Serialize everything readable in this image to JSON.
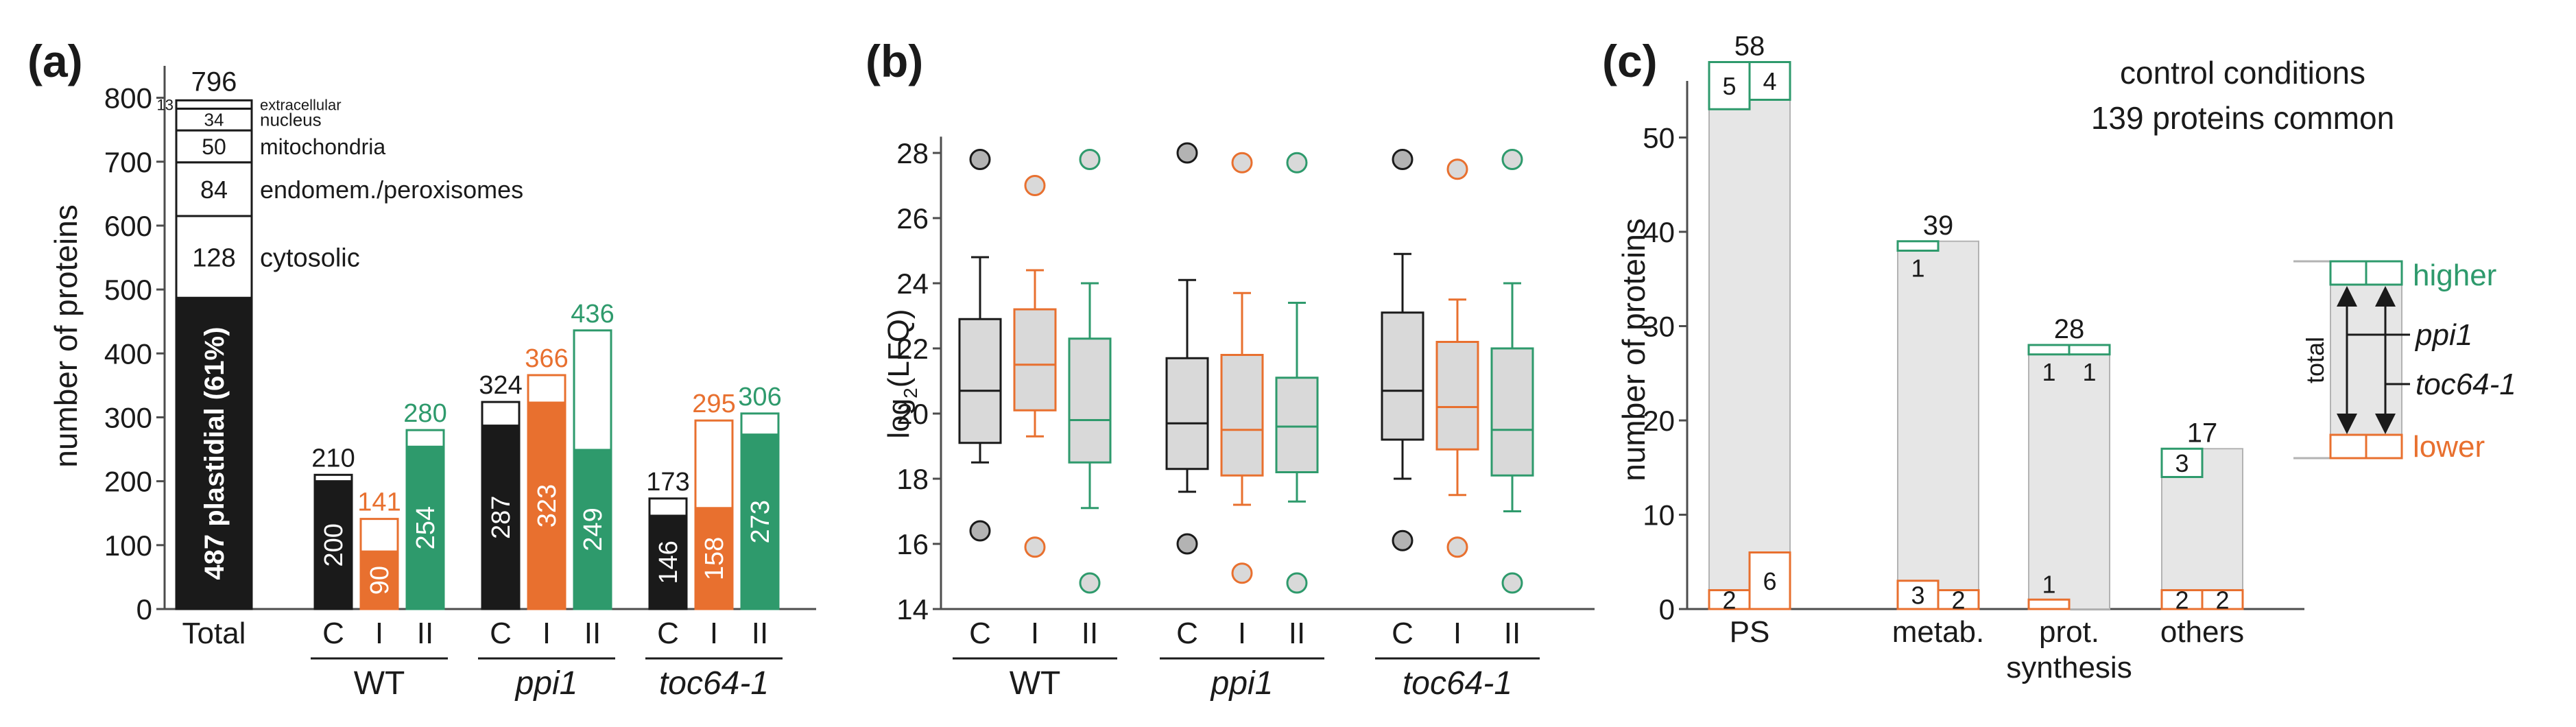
{
  "colors": {
    "black": "#1a1a1a",
    "orange": "#e8702f",
    "green": "#2e9a6c",
    "gray_fill": "#d9d9d9",
    "light_gray": "#e6e6e6",
    "axis": "#4d4d4d"
  },
  "chart_data": [
    {
      "panel": "(a)",
      "type": "bar",
      "ylabel": "number of proteins",
      "ylim": [
        0,
        850
      ],
      "yticks": [
        0,
        100,
        200,
        300,
        400,
        500,
        600,
        700,
        800
      ],
      "total_bar": {
        "label": "Total",
        "total": "796",
        "stack": [
          {
            "value": 487,
            "text": "487 plastidial (61%)"
          },
          {
            "value": 128,
            "text": "128",
            "name": "cytosolic"
          },
          {
            "value": 84,
            "text": "84",
            "name": "endomem./peroxisomes"
          },
          {
            "value": 50,
            "text": "50",
            "name": "mitochondria"
          },
          {
            "value": 34,
            "text": "34",
            "name": "nucleus"
          },
          {
            "value": 13,
            "text": "13",
            "name": "extracellular"
          }
        ]
      },
      "groups": [
        {
          "name": "WT",
          "italic": false,
          "bars": [
            {
              "label": "C",
              "total": 210,
              "plastid": 200,
              "color": "black"
            },
            {
              "label": "I",
              "total": 141,
              "plastid": 90,
              "color": "orange"
            },
            {
              "label": "II",
              "total": 280,
              "plastid": 254,
              "color": "green"
            }
          ]
        },
        {
          "name": "ppi1",
          "italic": true,
          "bars": [
            {
              "label": "C",
              "total": 324,
              "plastid": 287,
              "color": "black"
            },
            {
              "label": "I",
              "total": 366,
              "plastid": 323,
              "color": "orange"
            },
            {
              "label": "II",
              "total": 436,
              "plastid": 249,
              "color": "green"
            }
          ]
        },
        {
          "name": "toc64-1",
          "italic": true,
          "bars": [
            {
              "label": "C",
              "total": 173,
              "plastid": 146,
              "color": "black"
            },
            {
              "label": "I",
              "total": 295,
              "plastid": 158,
              "color": "orange"
            },
            {
              "label": "II",
              "total": 306,
              "plastid": 273,
              "color": "green"
            }
          ]
        }
      ]
    },
    {
      "panel": "(b)",
      "type": "box",
      "ylabel_main": "log",
      "ylabel_sub": "2",
      "ylabel_rest": "(LFQ)",
      "ylim": [
        14,
        28.5
      ],
      "yticks": [
        14,
        16,
        18,
        20,
        22,
        24,
        26,
        28
      ],
      "groups": [
        {
          "name": "WT",
          "italic": false,
          "boxes": [
            {
              "label": "C",
              "color": "black",
              "whisker_low": 18.5,
              "q1": 19.1,
              "median": 20.7,
              "q3": 22.9,
              "whisker_high": 24.8,
              "outlier_low": 16.4,
              "outlier_high": 27.8
            },
            {
              "label": "I",
              "color": "orange",
              "whisker_low": 19.3,
              "q1": 20.1,
              "median": 21.5,
              "q3": 23.2,
              "whisker_high": 24.4,
              "outlier_low": 15.9,
              "outlier_high": 27.0
            },
            {
              "label": "II",
              "color": "green",
              "whisker_low": 17.1,
              "q1": 18.5,
              "median": 19.8,
              "q3": 22.3,
              "whisker_high": 24.0,
              "outlier_low": 14.8,
              "outlier_high": 27.8
            }
          ]
        },
        {
          "name": "ppi1",
          "italic": true,
          "boxes": [
            {
              "label": "C",
              "color": "black",
              "whisker_low": 17.6,
              "q1": 18.3,
              "median": 19.7,
              "q3": 21.7,
              "whisker_high": 24.1,
              "outlier_low": 16.0,
              "outlier_high": 28.0
            },
            {
              "label": "I",
              "color": "orange",
              "whisker_low": 17.2,
              "q1": 18.1,
              "median": 19.5,
              "q3": 21.8,
              "whisker_high": 23.7,
              "outlier_low": 15.1,
              "outlier_high": 27.7
            },
            {
              "label": "II",
              "color": "green",
              "whisker_low": 17.3,
              "q1": 18.2,
              "median": 19.6,
              "q3": 21.1,
              "whisker_high": 23.4,
              "outlier_low": 14.8,
              "outlier_high": 27.7
            }
          ]
        },
        {
          "name": "toc64-1",
          "italic": true,
          "boxes": [
            {
              "label": "C",
              "color": "black",
              "whisker_low": 18.0,
              "q1": 19.2,
              "median": 20.7,
              "q3": 23.1,
              "whisker_high": 24.9,
              "outlier_low": 16.1,
              "outlier_high": 27.8
            },
            {
              "label": "I",
              "color": "orange",
              "whisker_low": 17.5,
              "q1": 18.9,
              "median": 20.2,
              "q3": 22.2,
              "whisker_high": 23.5,
              "outlier_low": 15.9,
              "outlier_high": 27.5
            },
            {
              "label": "II",
              "color": "green",
              "whisker_low": 17.0,
              "q1": 18.1,
              "median": 19.5,
              "q3": 22.0,
              "whisker_high": 24.0,
              "outlier_low": 14.8,
              "outlier_high": 27.8
            }
          ]
        }
      ]
    },
    {
      "panel": "(c)",
      "type": "bar",
      "ylabel": "number of proteins",
      "ylim": [
        0,
        56
      ],
      "yticks": [
        0,
        10,
        20,
        30,
        40,
        50
      ],
      "annotation": [
        "control conditions",
        "139 proteins common"
      ],
      "categories": [
        {
          "label": "PS",
          "total": 58,
          "higher": [
            5,
            4
          ],
          "lower": [
            2,
            6
          ],
          "higher_labels": [
            "5",
            "4"
          ],
          "lower_labels": [
            "2",
            "6"
          ]
        },
        {
          "label": "metab.",
          "total": 39,
          "higher": [
            1,
            0
          ],
          "lower": [
            3,
            2
          ],
          "higher_labels": [
            "1",
            ""
          ],
          "lower_labels": [
            "3",
            "2"
          ]
        },
        {
          "label": "prot.",
          "label2": "synthesis",
          "total": 28,
          "higher": [
            1,
            1
          ],
          "lower": [
            1,
            0
          ],
          "higher_labels": [
            "1",
            "1"
          ],
          "lower_labels": [
            "1",
            ""
          ]
        },
        {
          "label": "others",
          "total": 17,
          "higher": [
            3,
            0
          ],
          "lower": [
            2,
            2
          ],
          "higher_labels": [
            "3",
            ""
          ],
          "lower_labels": [
            "2",
            "2"
          ]
        }
      ],
      "legend": {
        "higher": "higher",
        "lower": "lower",
        "total": "total",
        "ppi1": "ppi1",
        "toc64": "toc64-1"
      }
    }
  ]
}
